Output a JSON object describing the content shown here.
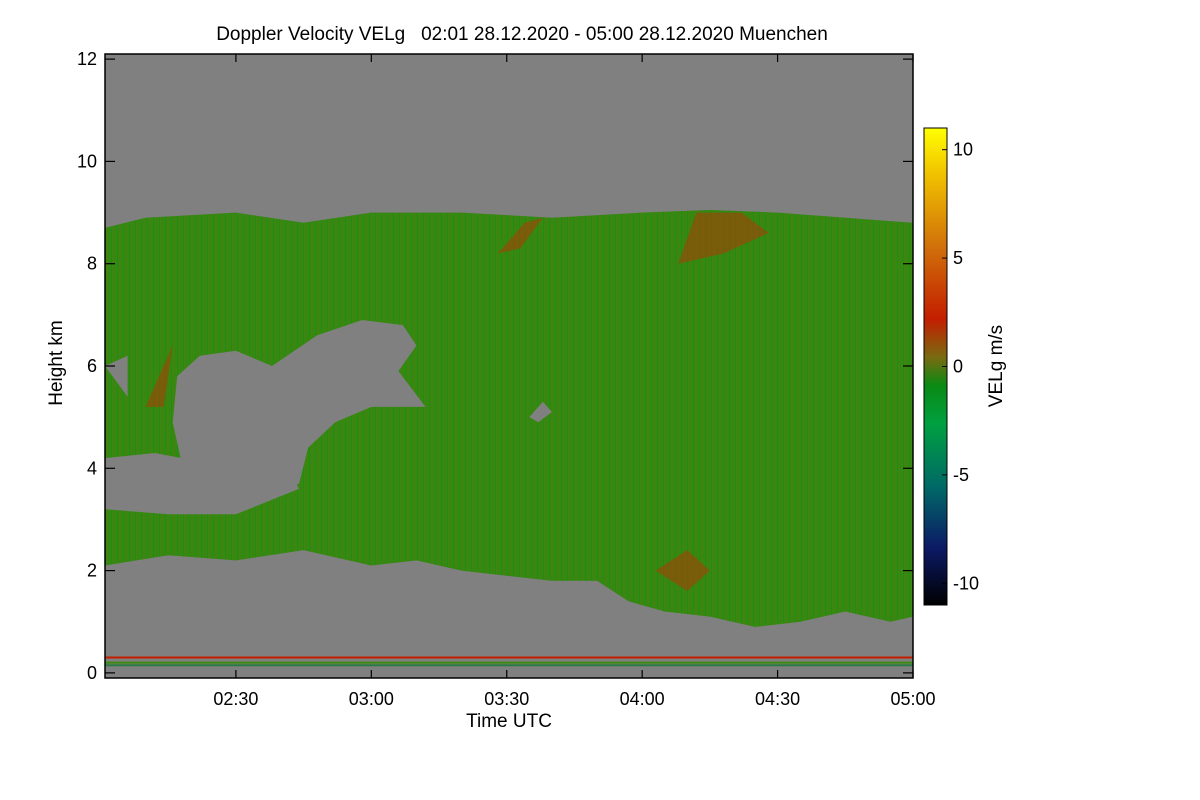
{
  "chart_data": {
    "type": "heatmap",
    "title": "Doppler Velocity VELg   02:01 28.12.2020 - 05:00 28.12.2020 Muenchen",
    "xlabel": "Time UTC",
    "ylabel": "Height km",
    "colorbar_label": "VELg m/s",
    "x_ticks": [
      {
        "label": "02:30",
        "value": 150
      },
      {
        "label": "03:00",
        "value": 180
      },
      {
        "label": "03:30",
        "value": 210
      },
      {
        "label": "04:00",
        "value": 240
      },
      {
        "label": "04:30",
        "value": 270
      },
      {
        "label": "05:00",
        "value": 300
      }
    ],
    "xlim": [
      121,
      300
    ],
    "y_ticks": [
      0,
      2,
      4,
      6,
      8,
      10,
      12
    ],
    "ylim": [
      -0.1,
      12.1
    ],
    "colorbar_ticks": [
      -10,
      -5,
      0,
      5,
      10
    ],
    "colorbar_range": [
      -11,
      11
    ],
    "colors": {
      "no_signal": "#808080",
      "colormap": [
        "#000000",
        "#0c1a66",
        "#006a66",
        "#00a040",
        "#0a8a14",
        "#7a6a10",
        "#c41e00",
        "#d0700a",
        "#f0c000",
        "#ffff00"
      ]
    },
    "cloud_top_km": [
      [
        121,
        8.7
      ],
      [
        130,
        8.9
      ],
      [
        150,
        9.0
      ],
      [
        165,
        8.8
      ],
      [
        180,
        9.0
      ],
      [
        200,
        9.0
      ],
      [
        220,
        8.9
      ],
      [
        240,
        9.0
      ],
      [
        255,
        9.05
      ],
      [
        270,
        9.0
      ],
      [
        285,
        8.9
      ],
      [
        300,
        8.8
      ]
    ],
    "cloud_base_km": [
      [
        121,
        2.1
      ],
      [
        135,
        2.3
      ],
      [
        150,
        2.2
      ],
      [
        165,
        2.4
      ],
      [
        180,
        2.1
      ],
      [
        190,
        2.2
      ],
      [
        200,
        2.0
      ],
      [
        210,
        1.9
      ],
      [
        220,
        1.8
      ],
      [
        230,
        1.8
      ],
      [
        237,
        1.4
      ],
      [
        245,
        1.2
      ],
      [
        255,
        1.1
      ],
      [
        265,
        0.9
      ],
      [
        275,
        1.0
      ],
      [
        285,
        1.2
      ],
      [
        295,
        1.0
      ],
      [
        300,
        1.1
      ]
    ],
    "clear_gaps": [
      [
        [
          121,
          6.0
        ],
        [
          126,
          5.4
        ],
        [
          126,
          6.2
        ]
      ],
      [
        [
          137,
          5.8
        ],
        [
          142,
          6.2
        ],
        [
          150,
          6.3
        ],
        [
          158,
          6.0
        ],
        [
          168,
          6.6
        ],
        [
          178,
          6.9
        ],
        [
          187,
          6.8
        ],
        [
          190,
          6.4
        ],
        [
          186,
          5.9
        ],
        [
          192,
          5.2
        ],
        [
          180,
          5.2
        ],
        [
          172,
          4.9
        ],
        [
          166,
          4.4
        ],
        [
          164,
          3.7
        ],
        [
          156,
          3.4
        ],
        [
          148,
          3.2
        ],
        [
          140,
          3.3
        ],
        [
          138,
          4.1
        ],
        [
          136,
          4.9
        ]
      ],
      [
        [
          121,
          4.2
        ],
        [
          132,
          4.3
        ],
        [
          150,
          4.0
        ],
        [
          162,
          3.9
        ],
        [
          164,
          3.6
        ],
        [
          150,
          3.1
        ],
        [
          135,
          3.1
        ],
        [
          121,
          3.2
        ]
      ],
      [
        [
          215,
          5.0
        ],
        [
          218,
          5.3
        ],
        [
          220,
          5.1
        ],
        [
          217,
          4.9
        ]
      ]
    ],
    "warm_patches": [
      [
        [
          248,
          8.0
        ],
        [
          258,
          8.2
        ],
        [
          268,
          8.6
        ],
        [
          262,
          9.0
        ],
        [
          252,
          9.0
        ]
      ],
      [
        [
          208,
          8.2
        ],
        [
          214,
          8.8
        ],
        [
          218,
          8.9
        ],
        [
          213,
          8.3
        ]
      ],
      [
        [
          243,
          2.0
        ],
        [
          250,
          2.4
        ],
        [
          255,
          2.0
        ],
        [
          250,
          1.6
        ]
      ],
      [
        [
          130,
          5.2
        ],
        [
          136,
          6.4
        ],
        [
          134,
          5.2
        ]
      ]
    ],
    "surface_lines_km": [
      0.3,
      0.2,
      0.15
    ]
  }
}
